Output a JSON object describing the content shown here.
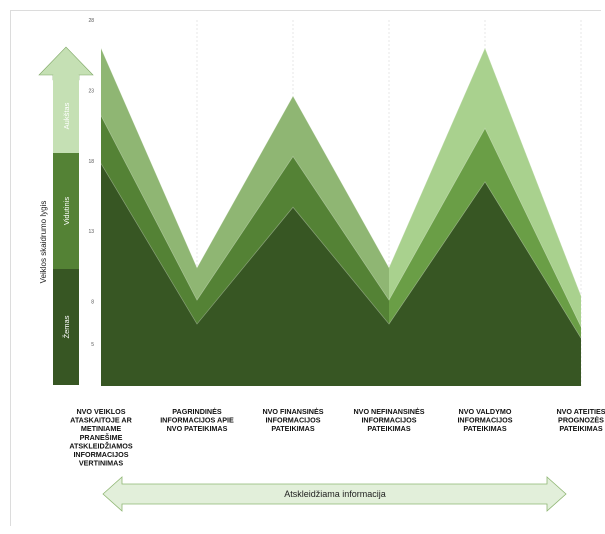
{
  "chart_data": {
    "type": "area",
    "categories": [
      "NVO VEIKLOS ATASKAITOJE AR METINIAME PRANEŠIME ATSKLEIDŽIAMOS INFORMACIJOS VERTINIMAS",
      "PAGRINDINĖS INFORMACIJOS APIE NVO PATEIKIMAS",
      "NVO FINANSINĖS INFORMACIJOS PATEIKIMAS",
      "NVO NEFINANSINĖS INFORMACIJOS PATEIKIMAS",
      "NVO VALDYMO INFORMACIJOS PATEIKIMAS",
      "NVO ATEITIES PROGNOZĖS PATEIKIMAS"
    ],
    "category_lines": [
      [
        "NVO VEIKLOS",
        "ATASKAITOJE AR",
        "METINIAME",
        "PRANEŠIME",
        "ATSKLEIDŽIAMOS",
        "INFORMACIJOS",
        "VERTINIMAS"
      ],
      [
        "PAGRINDINĖS",
        "INFORMACIJOS APIE",
        "NVO PATEIKIMAS"
      ],
      [
        "NVO FINANSINĖS",
        "INFORMACIJOS",
        "PATEIKIMAS"
      ],
      [
        "NVO NEFINANSINĖS",
        "INFORMACIJOS",
        "PATEIKIMAS"
      ],
      [
        "NVO VALDYMO",
        "INFORMACIJOS",
        "PATEIKIMAS"
      ],
      [
        "NVO ATEITIES",
        "PROGNOZĖS",
        "PATEIKIMAS"
      ]
    ],
    "stacked": true,
    "series": [
      {
        "values": [
          17.8,
          6.4,
          14.7,
          6.4,
          16.5,
          5.4
        ],
        "color": "#375623"
      },
      {
        "values": [
          3.4,
          1.7,
          3.6,
          1.7,
          3.8,
          0.8
        ],
        "color": "#548235"
      },
      {
        "values": [
          4.8,
          2.3,
          4.3,
          2.3,
          5.7,
          2.2
        ],
        "color": "#8FB673"
      }
    ],
    "series_extra_colors": [
      "#6A9E46",
      "#A9D18E"
    ],
    "yticks": [
      5,
      8,
      13,
      18,
      23,
      28
    ],
    "ylim": [
      2,
      28
    ],
    "ylabel": "Veiklos skaidrumo lygis",
    "xlabel": "Atskleidžiama informacija",
    "grid": "vertical-dashed"
  },
  "level_bar": {
    "segments": [
      {
        "label": "Žemas",
        "color": "#375623"
      },
      {
        "label": "Vidutinis",
        "color": "#548235"
      },
      {
        "label": "Aukštas",
        "color": "#C5E0B4"
      }
    ]
  }
}
